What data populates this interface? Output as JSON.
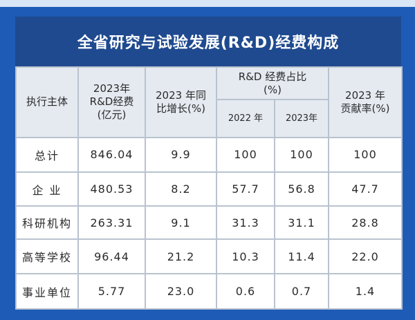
{
  "title": "全省研究与试验发展(R&D)经费构成",
  "header": {
    "col1": "执行主体",
    "col2": [
      "2023年",
      "R&D经费",
      "(亿元)"
    ],
    "col3": [
      "2023 年同",
      "比增长(%)"
    ],
    "col4_group": [
      "R&D 经费占比",
      "(%)"
    ],
    "col4_sub": [
      "2022 年",
      "2023年"
    ],
    "col5": [
      "2023 年",
      "贡献率(%)"
    ]
  },
  "rows": [
    {
      "label": "总计",
      "funding": "846.04",
      "growth": "9.9",
      "share2022": "100",
      "share2023": "100",
      "contribution": "100"
    },
    {
      "label": "企 业",
      "funding": "480.53",
      "growth": "8.2",
      "share2022": "57.7",
      "share2023": "56.8",
      "contribution": "47.7"
    },
    {
      "label": "科研机构",
      "funding": "263.31",
      "growth": "9.1",
      "share2022": "31.3",
      "share2023": "31.1",
      "contribution": "28.8"
    },
    {
      "label": "高等学校",
      "funding": "96.44",
      "growth": "21.2",
      "share2022": "10.3",
      "share2023": "11.4",
      "contribution": "22.0"
    },
    {
      "label": "事业单位",
      "funding": "5.77",
      "growth": "23.0",
      "share2022": "0.6",
      "share2023": "0.7",
      "contribution": "1.4"
    }
  ],
  "colors": {
    "background": "#1e5bb6",
    "title_bar": "#1f4a8f",
    "header_fill": "#e5eaf1",
    "border": "#b9c2cf"
  }
}
